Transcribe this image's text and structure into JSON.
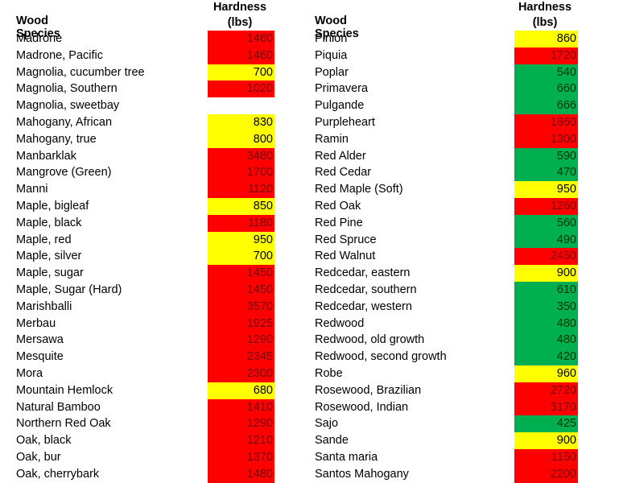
{
  "colors": {
    "red": "#ff0000",
    "yellow": "#ffff00",
    "green": "#00b050"
  },
  "left_table": {
    "species_header": "Wood Species",
    "hardness_header_line1": "Hardness",
    "hardness_header_line2": "(lbs)",
    "rows": [
      {
        "name": "Madrone",
        "value": "1460",
        "color": "red"
      },
      {
        "name": "Madrone, Pacific",
        "value": "1460",
        "color": "red"
      },
      {
        "name": "Magnolia,  cucumber tree",
        "value": "700",
        "color": "yellow"
      },
      {
        "name": "Magnolia, Southern",
        "value": "1020",
        "color": "red"
      },
      {
        "name": "Magnolia, sweetbay",
        "value": "",
        "color": "none"
      },
      {
        "name": "Mahogany, African",
        "value": "830",
        "color": "yellow"
      },
      {
        "name": "Mahogany, true",
        "value": "800",
        "color": "yellow"
      },
      {
        "name": "Manbarklak",
        "value": "3480",
        "color": "red"
      },
      {
        "name": "Mangrove (Green)",
        "value": "1700",
        "color": "red"
      },
      {
        "name": "Manni",
        "value": "1120",
        "color": "red"
      },
      {
        "name": "Maple, bigleaf",
        "value": "850",
        "color": "yellow"
      },
      {
        "name": "Maple, black",
        "value": "1180",
        "color": "red"
      },
      {
        "name": "Maple, red",
        "value": "950",
        "color": "yellow"
      },
      {
        "name": "Maple, silver",
        "value": "700",
        "color": "yellow"
      },
      {
        "name": "Maple, sugar",
        "value": "1450",
        "color": "red"
      },
      {
        "name": "Maple, Sugar (Hard)",
        "value": "1450",
        "color": "red"
      },
      {
        "name": "Marishballi",
        "value": "3570",
        "color": "red"
      },
      {
        "name": "Merbau",
        "value": "1925",
        "color": "red"
      },
      {
        "name": "Mersawa",
        "value": "1290",
        "color": "red"
      },
      {
        "name": "Mesquite",
        "value": "2345",
        "color": "red"
      },
      {
        "name": "Mora",
        "value": "2300",
        "color": "red"
      },
      {
        "name": "Mountain Hemlock",
        "value": "680",
        "color": "yellow"
      },
      {
        "name": "Natural Bamboo",
        "value": "1410",
        "color": "red"
      },
      {
        "name": "Northern Red Oak",
        "value": "1290",
        "color": "red"
      },
      {
        "name": "Oak, black",
        "value": "1210",
        "color": "red"
      },
      {
        "name": "Oak, bur",
        "value": "1370",
        "color": "red"
      },
      {
        "name": "Oak, cherrybark",
        "value": "1480",
        "color": "red"
      }
    ]
  },
  "right_table": {
    "species_header": "Wood Species",
    "hardness_header_line1": "Hardness",
    "hardness_header_line2": "(lbs)",
    "rows": [
      {
        "name": "Pinion",
        "value": "860",
        "color": "yellow"
      },
      {
        "name": "Piquia",
        "value": "1720",
        "color": "red"
      },
      {
        "name": "Poplar",
        "value": "540",
        "color": "green"
      },
      {
        "name": "Primavera",
        "value": "660",
        "color": "green"
      },
      {
        "name": "Pulgande",
        "value": "666",
        "color": "green"
      },
      {
        "name": "Purpleheart",
        "value": "1860",
        "color": "red"
      },
      {
        "name": "Ramin",
        "value": "1300",
        "color": "red"
      },
      {
        "name": "Red Alder",
        "value": "590",
        "color": "green"
      },
      {
        "name": "Red Cedar",
        "value": "470",
        "color": "green"
      },
      {
        "name": "Red Maple (Soft)",
        "value": "950",
        "color": "yellow"
      },
      {
        "name": "Red Oak",
        "value": "1260",
        "color": "red"
      },
      {
        "name": "Red Pine",
        "value": "560",
        "color": "green"
      },
      {
        "name": "Red Spruce",
        "value": "490",
        "color": "green"
      },
      {
        "name": "Red Walnut",
        "value": "2450",
        "color": "red"
      },
      {
        "name": "Redcedar, eastern",
        "value": "900",
        "color": "yellow"
      },
      {
        "name": "Redcedar, southern",
        "value": "610",
        "color": "green"
      },
      {
        "name": "Redcedar, western",
        "value": "350",
        "color": "green"
      },
      {
        "name": "Redwood",
        "value": "480",
        "color": "green"
      },
      {
        "name": "Redwood, old growth",
        "value": "480",
        "color": "green"
      },
      {
        "name": "Redwood, second growth",
        "value": "420",
        "color": "green"
      },
      {
        "name": "Robe",
        "value": "960",
        "color": "yellow"
      },
      {
        "name": "Rosewood, Brazilian",
        "value": "2720",
        "color": "red"
      },
      {
        "name": "Rosewood, Indian",
        "value": "3170",
        "color": "red"
      },
      {
        "name": "Sajo",
        "value": "425",
        "color": "green"
      },
      {
        "name": "Sande",
        "value": "900",
        "color": "yellow"
      },
      {
        "name": "Santa maria",
        "value": "1150",
        "color": "red"
      },
      {
        "name": "Santos Mahogany",
        "value": "2200",
        "color": "red"
      }
    ]
  }
}
